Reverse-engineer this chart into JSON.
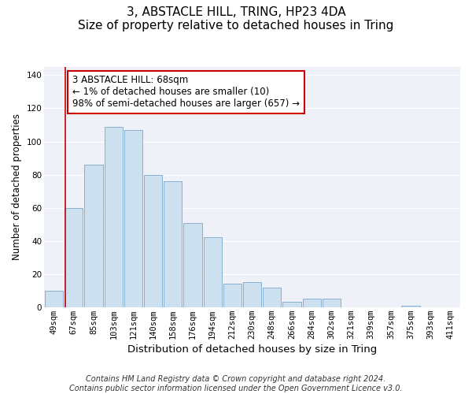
{
  "title": "3, ABSTACLE HILL, TRING, HP23 4DA",
  "subtitle": "Size of property relative to detached houses in Tring",
  "xlabel": "Distribution of detached houses by size in Tring",
  "ylabel": "Number of detached properties",
  "bar_labels": [
    "49sqm",
    "67sqm",
    "85sqm",
    "103sqm",
    "121sqm",
    "140sqm",
    "158sqm",
    "176sqm",
    "194sqm",
    "212sqm",
    "230sqm",
    "248sqm",
    "266sqm",
    "284sqm",
    "302sqm",
    "321sqm",
    "339sqm",
    "357sqm",
    "375sqm",
    "393sqm",
    "411sqm"
  ],
  "bar_heights": [
    10,
    60,
    86,
    109,
    107,
    80,
    76,
    51,
    42,
    14,
    15,
    12,
    3,
    5,
    5,
    0,
    0,
    0,
    1,
    0,
    0
  ],
  "bar_color": "#cde0f0",
  "bar_edge_color": "#88aece",
  "vline_x_idx": 1,
  "vline_color": "#cc0000",
  "annotation_text": "3 ABSTACLE HILL: 68sqm\n← 1% of detached houses are smaller (10)\n98% of semi-detached houses are larger (657) →",
  "annotation_box_color": "#ffffff",
  "annotation_box_edge": "#cc0000",
  "bg_color": "#eef2f8",
  "ylim": [
    0,
    145
  ],
  "yticks": [
    0,
    20,
    40,
    60,
    80,
    100,
    120,
    140
  ],
  "footer_line1": "Contains HM Land Registry data © Crown copyright and database right 2024.",
  "footer_line2": "Contains public sector information licensed under the Open Government Licence v3.0.",
  "title_fontsize": 11,
  "subtitle_fontsize": 9.5,
  "xlabel_fontsize": 9.5,
  "ylabel_fontsize": 8.5,
  "tick_fontsize": 7.5,
  "annotation_fontsize": 8.5,
  "footer_fontsize": 7
}
